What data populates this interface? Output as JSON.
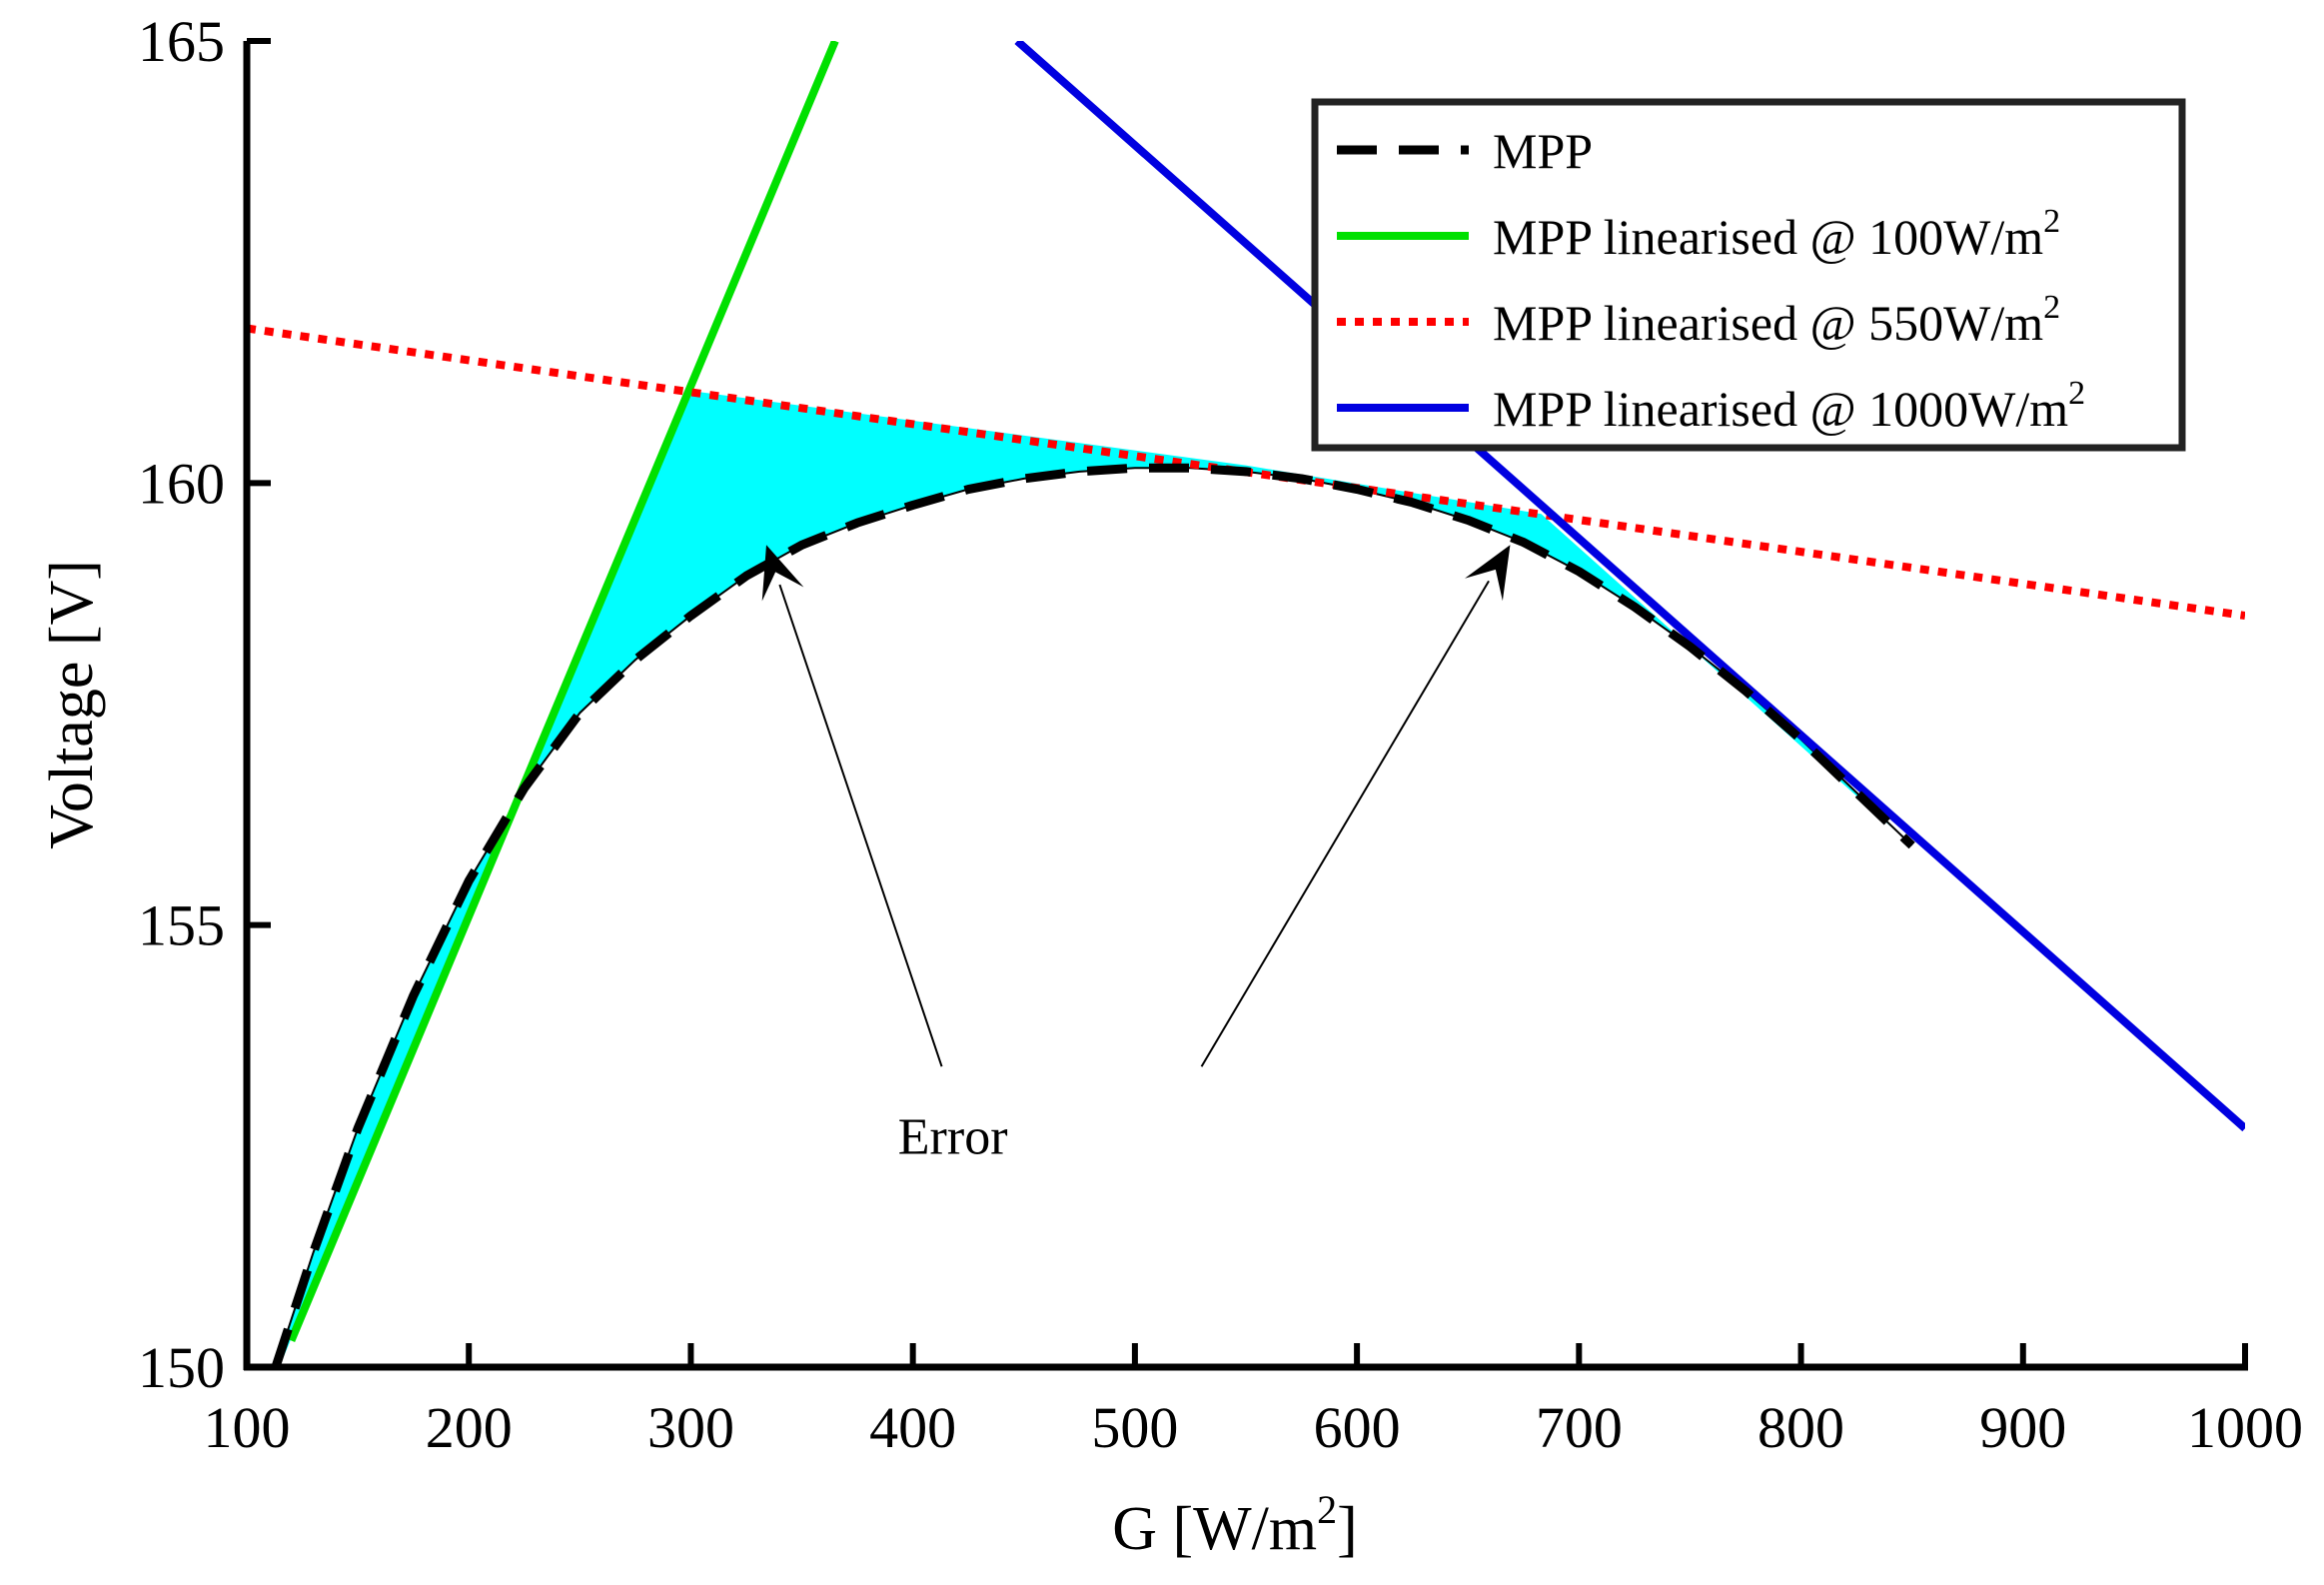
{
  "chart_data": {
    "type": "line",
    "title": "",
    "xlabel": "G [W/m",
    "xlabel_sup": "2",
    "xlabel_tail": "]",
    "ylabel": "Voltage [V]",
    "xlim": [
      100,
      1000
    ],
    "ylim": [
      150,
      165
    ],
    "xticks": [
      100,
      200,
      300,
      400,
      500,
      600,
      700,
      800,
      900,
      1000
    ],
    "yticks": [
      150,
      155,
      160,
      165
    ],
    "grid": false,
    "legend_position": "top-right",
    "series": [
      {
        "name": "MPP",
        "style": "dashed",
        "color": "#000000",
        "x": [
          113,
          130,
          150,
          175,
          200,
          225,
          250,
          275,
          300,
          325,
          350,
          375,
          400,
          425,
          450,
          475,
          500,
          525,
          550,
          575,
          600,
          625,
          650,
          675,
          700,
          725,
          750,
          775,
          800,
          825,
          850
        ],
        "y": [
          150.0,
          151.3,
          152.7,
          154.2,
          155.5,
          156.55,
          157.4,
          158.0,
          158.5,
          158.95,
          159.3,
          159.55,
          159.75,
          159.93,
          160.05,
          160.13,
          160.17,
          160.17,
          160.13,
          160.05,
          159.93,
          159.78,
          159.58,
          159.33,
          159.0,
          158.6,
          158.15,
          157.65,
          157.1,
          156.5,
          155.9
        ]
      },
      {
        "name": "MPP linearised @ 100W/m",
        "name_sup": "2",
        "style": "solid",
        "color": "#00e000",
        "x": [
          120,
          365
        ],
        "y": [
          150.3,
          165.0
        ]
      },
      {
        "name": "MPP linearised @ 550W/m",
        "name_sup": "2",
        "style": "dotted",
        "color": "#ff0000",
        "x": [
          100,
          1000
        ],
        "y": [
          161.75,
          158.5
        ]
      },
      {
        "name": "MPP linearised @ 1000W/m",
        "name_sup": "2",
        "style": "solid",
        "color": "#0000e0",
        "x": [
          447,
          1000
        ],
        "y": [
          165.0,
          152.7
        ]
      }
    ],
    "fill": {
      "name": "error-area",
      "color": "#00ffff",
      "upper_x": [
        113,
        298,
        550,
        683,
        850
      ],
      "upper_y": [
        149.9,
        161.05,
        160.2,
        159.65,
        155.9
      ]
    },
    "annotations": [
      {
        "text": "Error",
        "text_x": 418,
        "text_y": 153.0,
        "arrows": [
          {
            "from_x": 413,
            "from_y": 153.4,
            "to_x": 334,
            "to_y": 159.3
          },
          {
            "from_x": 530,
            "from_y": 153.4,
            "to_x": 669,
            "to_y": 159.3
          }
        ]
      }
    ]
  }
}
